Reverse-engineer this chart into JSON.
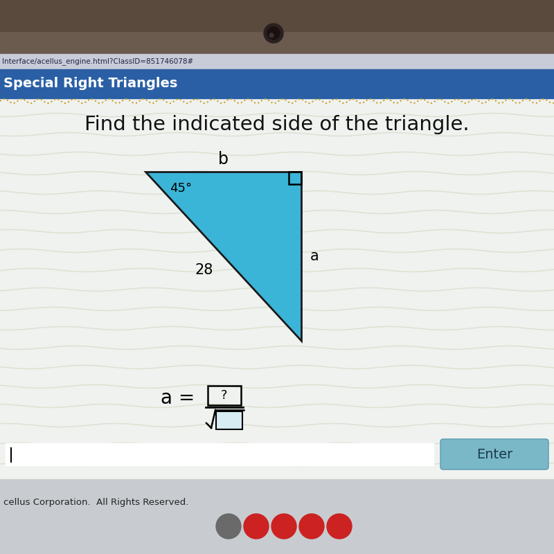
{
  "bg_camera_color": "#6b5a4e",
  "bg_url_color": "#c8ccd8",
  "bg_header_color": "#2a5fa5",
  "bg_main_color": "#e8ecf0",
  "url_text": "Interface/acellus_engine.html?ClassID=851746078#",
  "header_text": "Special Right Triangles",
  "main_question": "Find the indicated side of the triangle.",
  "triangle_fill": "#3ab5d8",
  "triangle_stroke": "#1a1a1a",
  "angle_label": "45°",
  "hyp_label": "28",
  "side_b_label": "b",
  "side_a_label": "a",
  "answer_text": "a = ",
  "footer_text": "cellus Corporation.  All Rights Reserved.",
  "enter_btn_color": "#7ab8c8",
  "enter_btn_text": "Enter",
  "wavy_line_color": "#c8a020",
  "input_bg": "#ffffff",
  "footer_bg": "#d8d8d0"
}
